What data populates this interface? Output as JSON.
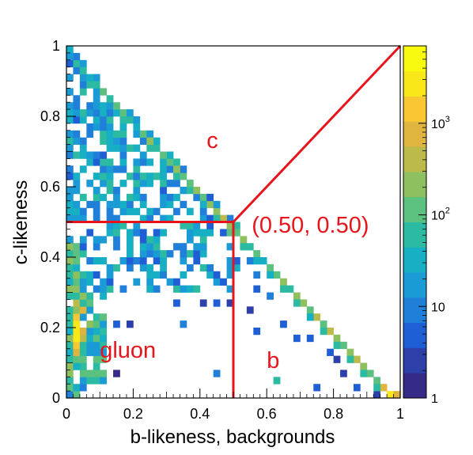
{
  "chart_data": {
    "type": "heatmap",
    "title": "",
    "xlabel": "b-likeness, backgrounds",
    "ylabel": "c-likeness",
    "xlim": [
      0,
      1
    ],
    "ylim": [
      0,
      1
    ],
    "x_ticks": [
      "0",
      "0.2",
      "0.4",
      "0.6",
      "0.8",
      "1"
    ],
    "y_ticks": [
      "0",
      "0.2",
      "0.4",
      "0.6",
      "0.8",
      "1"
    ],
    "x_tick_values": [
      0,
      0.2,
      0.4,
      0.6,
      0.8,
      1
    ],
    "y_tick_values": [
      0,
      0.2,
      0.4,
      0.6,
      0.8,
      1
    ],
    "bins": 50,
    "z_scale": "log",
    "z_range": [
      1,
      7000
    ],
    "colorbar_ticks": [
      {
        "label": "1",
        "value": 1
      },
      {
        "label": "10",
        "value": 10
      },
      {
        "label": "10",
        "sup": "2",
        "value": 100
      },
      {
        "label": "10",
        "sup": "3",
        "value": 1000
      }
    ],
    "colormap": [
      "#352a87",
      "#2d3fa8",
      "#1f5fd6",
      "#1f7fd9",
      "#1b9bd5",
      "#17afc4",
      "#2cbba2",
      "#5cc07f",
      "#8fc05f",
      "#bcba4a",
      "#dfb43f",
      "#f8c731",
      "#f9e71a",
      "#f9fb0e"
    ],
    "diagonal": [
      {
        "x": 0.01,
        "y": 0.99,
        "value": 40
      },
      {
        "x": 0.03,
        "y": 0.95,
        "value": 70
      },
      {
        "x": 0.05,
        "y": 0.93,
        "value": 55
      },
      {
        "x": 0.07,
        "y": 0.91,
        "value": 40
      },
      {
        "x": 0.09,
        "y": 0.89,
        "value": 60
      },
      {
        "x": 0.11,
        "y": 0.87,
        "value": 90
      },
      {
        "x": 0.13,
        "y": 0.85,
        "value": 50
      },
      {
        "x": 0.15,
        "y": 0.83,
        "value": 120
      },
      {
        "x": 0.17,
        "y": 0.81,
        "value": 150
      },
      {
        "x": 0.19,
        "y": 0.79,
        "value": 70
      },
      {
        "x": 0.21,
        "y": 0.77,
        "value": 40
      },
      {
        "x": 0.23,
        "y": 0.75,
        "value": 90
      },
      {
        "x": 0.25,
        "y": 0.73,
        "value": 180
      },
      {
        "x": 0.27,
        "y": 0.71,
        "value": 60
      },
      {
        "x": 0.29,
        "y": 0.69,
        "value": 110
      },
      {
        "x": 0.31,
        "y": 0.67,
        "value": 130
      },
      {
        "x": 0.33,
        "y": 0.65,
        "value": 200
      },
      {
        "x": 0.35,
        "y": 0.63,
        "value": 90
      },
      {
        "x": 0.37,
        "y": 0.61,
        "value": 140
      },
      {
        "x": 0.39,
        "y": 0.59,
        "value": 180
      },
      {
        "x": 0.41,
        "y": 0.57,
        "value": 120
      },
      {
        "x": 0.43,
        "y": 0.55,
        "value": 250
      },
      {
        "x": 0.45,
        "y": 0.53,
        "value": 170
      },
      {
        "x": 0.47,
        "y": 0.51,
        "value": 300
      },
      {
        "x": 0.49,
        "y": 0.49,
        "value": 280
      },
      {
        "x": 0.51,
        "y": 0.47,
        "value": 110
      },
      {
        "x": 0.53,
        "y": 0.45,
        "value": 180
      },
      {
        "x": 0.55,
        "y": 0.43,
        "value": 60
      },
      {
        "x": 0.57,
        "y": 0.41,
        "value": 90
      },
      {
        "x": 0.59,
        "y": 0.39,
        "value": 40
      },
      {
        "x": 0.61,
        "y": 0.37,
        "value": 100
      },
      {
        "x": 0.63,
        "y": 0.35,
        "value": 140
      },
      {
        "x": 0.65,
        "y": 0.33,
        "value": 190
      },
      {
        "x": 0.67,
        "y": 0.31,
        "value": 80
      },
      {
        "x": 0.69,
        "y": 0.29,
        "value": 200
      },
      {
        "x": 0.71,
        "y": 0.27,
        "value": 160
      },
      {
        "x": 0.73,
        "y": 0.25,
        "value": 90
      },
      {
        "x": 0.75,
        "y": 0.23,
        "value": 300
      },
      {
        "x": 0.77,
        "y": 0.21,
        "value": 150
      },
      {
        "x": 0.79,
        "y": 0.19,
        "value": 400
      },
      {
        "x": 0.81,
        "y": 0.17,
        "value": 200
      },
      {
        "x": 0.83,
        "y": 0.15,
        "value": 120
      },
      {
        "x": 0.85,
        "y": 0.13,
        "value": 220
      },
      {
        "x": 0.87,
        "y": 0.11,
        "value": 350
      },
      {
        "x": 0.89,
        "y": 0.09,
        "value": 200
      },
      {
        "x": 0.91,
        "y": 0.07,
        "value": 90
      },
      {
        "x": 0.93,
        "y": 0.05,
        "value": 150
      },
      {
        "x": 0.95,
        "y": 0.03,
        "value": 600
      },
      {
        "x": 0.97,
        "y": 0.01,
        "value": 2500
      },
      {
        "x": 0.99,
        "y": 0.01,
        "value": 800
      }
    ],
    "left_edge": [
      {
        "x": 0.01,
        "y": 0.37,
        "value": 80
      },
      {
        "x": 0.03,
        "y": 0.33,
        "value": 150
      },
      {
        "x": 0.03,
        "y": 0.27,
        "value": 400
      },
      {
        "x": 0.03,
        "y": 0.23,
        "value": 1500
      },
      {
        "x": 0.03,
        "y": 0.21,
        "value": 2500
      },
      {
        "x": 0.03,
        "y": 0.19,
        "value": 3000
      },
      {
        "x": 0.03,
        "y": 0.17,
        "value": 2000
      },
      {
        "x": 0.03,
        "y": 0.15,
        "value": 1200
      },
      {
        "x": 0.03,
        "y": 0.13,
        "value": 600
      },
      {
        "x": 0.05,
        "y": 0.25,
        "value": 700
      },
      {
        "x": 0.05,
        "y": 0.19,
        "value": 900
      },
      {
        "x": 0.05,
        "y": 0.17,
        "value": 500
      },
      {
        "x": 0.05,
        "y": 0.29,
        "value": 200
      },
      {
        "x": 0.07,
        "y": 0.21,
        "value": 250
      },
      {
        "x": 0.01,
        "y": 0.19,
        "value": 30
      },
      {
        "x": 0.01,
        "y": 0.01,
        "value": 8
      }
    ],
    "points": [
      {
        "x": 0.05,
        "y": 0.03,
        "value": 12
      },
      {
        "x": 0.15,
        "y": 0.21,
        "value": 6
      },
      {
        "x": 0.19,
        "y": 0.21,
        "value": 3
      },
      {
        "x": 0.15,
        "y": 0.07,
        "value": 1
      },
      {
        "x": 0.45,
        "y": 0.07,
        "value": 8
      },
      {
        "x": 0.63,
        "y": 0.05,
        "value": 60
      },
      {
        "x": 0.73,
        "y": 0.17,
        "value": 5
      },
      {
        "x": 0.79,
        "y": 0.13,
        "value": 5
      },
      {
        "x": 0.81,
        "y": 0.11,
        "value": 3
      },
      {
        "x": 0.83,
        "y": 0.07,
        "value": 2
      },
      {
        "x": 0.75,
        "y": 0.03,
        "value": 4
      },
      {
        "x": 0.87,
        "y": 0.03,
        "value": 6
      },
      {
        "x": 0.93,
        "y": 0.01,
        "value": 3
      },
      {
        "x": 0.33,
        "y": 0.27,
        "value": 4
      },
      {
        "x": 0.35,
        "y": 0.21,
        "value": 7
      },
      {
        "x": 0.41,
        "y": 0.27,
        "value": 2
      },
      {
        "x": 0.45,
        "y": 0.27,
        "value": 5
      },
      {
        "x": 0.49,
        "y": 0.27,
        "value": 3
      },
      {
        "x": 0.55,
        "y": 0.25,
        "value": 2
      },
      {
        "x": 0.57,
        "y": 0.19,
        "value": 5
      },
      {
        "x": 0.61,
        "y": 0.29,
        "value": 10
      },
      {
        "x": 0.65,
        "y": 0.21,
        "value": 4
      },
      {
        "x": 0.69,
        "y": 0.17,
        "value": 6
      }
    ],
    "annotations": [
      {
        "text": "c",
        "x": 0.42,
        "y": 0.71
      },
      {
        "text": "(0.50, 0.50)",
        "x": 0.555,
        "y": 0.47
      },
      {
        "text": "gluon",
        "x": 0.1,
        "y": 0.115
      },
      {
        "text": "b",
        "x": 0.6,
        "y": 0.085
      }
    ],
    "lines": [
      {
        "from": [
          0,
          0.5
        ],
        "to": [
          0.5,
          0.5
        ]
      },
      {
        "from": [
          0.5,
          0.5
        ],
        "to": [
          1,
          1
        ]
      },
      {
        "from": [
          0.5,
          0.5
        ],
        "to": [
          0.5,
          0
        ]
      }
    ],
    "line_color": "#e8141c",
    "grid": false
  }
}
